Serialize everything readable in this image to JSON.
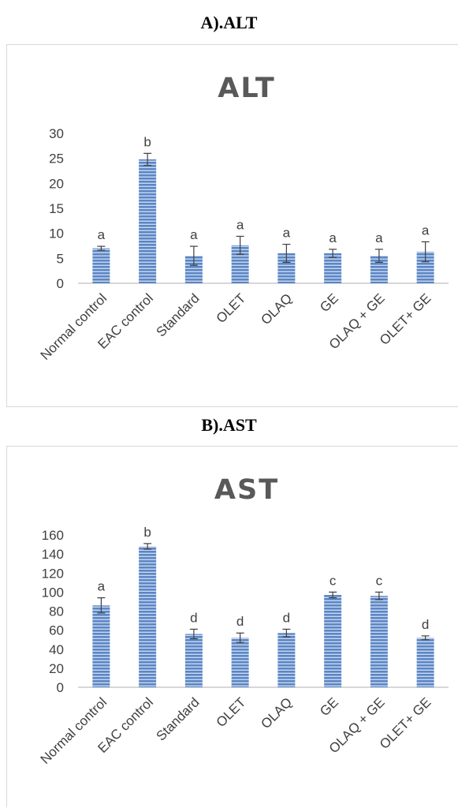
{
  "headings": {
    "a": "A).ALT",
    "b": "B).AST"
  },
  "colors": {
    "bar": "#5b86c6",
    "bar_stripe": "#c9d8ee",
    "error": "#404040",
    "axis": "#bfbfbf",
    "text": "#404040",
    "title": "#595959"
  },
  "chart_data": [
    {
      "type": "bar",
      "title": "ALT",
      "xlabel": "",
      "ylabel": "",
      "categories": [
        "Normal control",
        "EAC control",
        "Standard",
        "OLET",
        "OLAQ",
        "GE",
        "OLAQ + GE",
        "OLET+ GE"
      ],
      "values": [
        7,
        24.8,
        5.5,
        7.6,
        6,
        6,
        5.5,
        6.3
      ],
      "error": [
        0.4,
        1.2,
        1.9,
        1.8,
        1.8,
        0.8,
        1.3,
        2.0
      ],
      "significance": [
        "a",
        "b",
        "a",
        "a",
        "a",
        "a",
        "a",
        "a"
      ],
      "ylim": [
        0,
        30
      ],
      "yticks": [
        0,
        5,
        10,
        15,
        20,
        25,
        30
      ],
      "grid": false
    },
    {
      "type": "bar",
      "title": "AST",
      "xlabel": "",
      "ylabel": "",
      "categories": [
        "Normal control",
        "EAC control",
        "Standard",
        "OLET",
        "OLAQ",
        "GE",
        "OLAQ + GE",
        "OLET+ GE"
      ],
      "values": [
        86,
        148,
        56,
        52,
        57,
        97,
        96,
        52
      ],
      "error": [
        8,
        3,
        5,
        5,
        4,
        3,
        4,
        2
      ],
      "significance": [
        "a",
        "b",
        "d",
        "d",
        "d",
        "c",
        "c",
        "d"
      ],
      "ylim": [
        0,
        160
      ],
      "yticks": [
        0,
        20,
        40,
        60,
        80,
        100,
        120,
        140,
        160
      ],
      "grid": false
    }
  ]
}
